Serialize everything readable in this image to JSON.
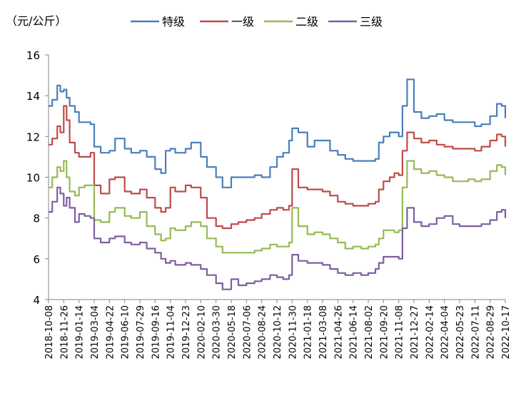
{
  "chart_data": {
    "type": "line",
    "unit_label": "（元/公斤）",
    "ylim": [
      4,
      16
    ],
    "yticks": [
      4,
      6,
      8,
      10,
      12,
      14,
      16
    ],
    "grid": false,
    "legend_position": "top",
    "x_range": [
      "2018-10-08",
      "2022-10-17"
    ],
    "x_tick_labels": [
      "2018-10-08",
      "2018-11-26",
      "2019-01-14",
      "2019-03-04",
      "2019-04-22",
      "2019-06-10",
      "2019-07-29",
      "2019-09-16",
      "2019-11-04",
      "2019-12-23",
      "2020-02-10",
      "2020-03-30",
      "2020-05-18",
      "2020-07-06",
      "2020-08-24",
      "2020-10-12",
      "2020-11-30",
      "2021-01-18",
      "2021-03-08",
      "2021-04-26",
      "2021-06-14",
      "2021-08-02",
      "2021-09-20",
      "2021-11-08",
      "2021-12-27",
      "2022-02-14",
      "2022-04-04",
      "2022-05-23",
      "2022-07-11",
      "2022-08-29",
      "2022-10-17"
    ],
    "series": [
      {
        "name": "特级",
        "color": "#4a7ebb",
        "x": [
          "2018-10-08",
          "2018-10-20",
          "2018-11-05",
          "2018-11-15",
          "2018-11-26",
          "2018-12-05",
          "2018-12-15",
          "2019-01-01",
          "2019-01-14",
          "2019-02-01",
          "2019-02-20",
          "2019-03-04",
          "2019-03-25",
          "2019-04-22",
          "2019-05-10",
          "2019-06-10",
          "2019-07-01",
          "2019-07-29",
          "2019-08-20",
          "2019-09-16",
          "2019-10-05",
          "2019-10-20",
          "2019-11-04",
          "2019-11-20",
          "2019-12-23",
          "2020-01-10",
          "2020-02-10",
          "2020-03-01",
          "2020-03-30",
          "2020-04-20",
          "2020-05-18",
          "2020-06-10",
          "2020-07-06",
          "2020-08-01",
          "2020-08-24",
          "2020-09-20",
          "2020-10-12",
          "2020-11-01",
          "2020-11-20",
          "2020-11-30",
          "2020-12-20",
          "2021-01-18",
          "2021-02-10",
          "2021-03-08",
          "2021-04-01",
          "2021-04-26",
          "2021-05-20",
          "2021-06-14",
          "2021-07-10",
          "2021-08-02",
          "2021-08-25",
          "2021-09-05",
          "2021-09-20",
          "2021-10-10",
          "2021-10-25",
          "2021-11-08",
          "2021-11-20",
          "2021-12-05",
          "2021-12-27",
          "2022-01-20",
          "2022-02-14",
          "2022-03-10",
          "2022-04-04",
          "2022-05-01",
          "2022-05-23",
          "2022-06-20",
          "2022-07-11",
          "2022-08-01",
          "2022-08-29",
          "2022-09-20",
          "2022-10-05",
          "2022-10-17"
        ],
        "values": [
          13.5,
          13.8,
          14.5,
          14.2,
          14.3,
          13.9,
          13.5,
          13.2,
          12.7,
          12.7,
          12.6,
          11.5,
          11.2,
          11.3,
          11.9,
          11.4,
          11.2,
          11.3,
          11.0,
          10.4,
          10.2,
          11.3,
          11.4,
          11.2,
          11.4,
          11.7,
          11.0,
          10.5,
          10.0,
          9.5,
          10.0,
          10.0,
          10.0,
          10.1,
          10.0,
          10.5,
          11.0,
          11.2,
          11.8,
          12.4,
          12.2,
          11.5,
          11.8,
          11.8,
          11.3,
          11.1,
          10.9,
          10.8,
          10.8,
          10.8,
          10.9,
          11.7,
          12.0,
          12.2,
          12.2,
          12.0,
          13.5,
          14.8,
          13.2,
          12.9,
          13.0,
          13.1,
          12.8,
          12.7,
          12.7,
          12.7,
          12.5,
          12.6,
          13.0,
          13.6,
          13.5,
          12.9
        ]
      },
      {
        "name": "一级",
        "color": "#be4b48",
        "x": [
          "2018-10-08",
          "2018-10-20",
          "2018-11-05",
          "2018-11-15",
          "2018-11-26",
          "2018-12-05",
          "2018-12-15",
          "2019-01-01",
          "2019-01-14",
          "2019-02-01",
          "2019-02-20",
          "2019-03-04",
          "2019-03-25",
          "2019-04-22",
          "2019-05-10",
          "2019-06-10",
          "2019-07-01",
          "2019-07-29",
          "2019-08-20",
          "2019-09-16",
          "2019-10-05",
          "2019-10-20",
          "2019-11-04",
          "2019-11-20",
          "2019-12-23",
          "2020-01-10",
          "2020-02-10",
          "2020-03-01",
          "2020-03-30",
          "2020-04-20",
          "2020-05-18",
          "2020-06-10",
          "2020-07-06",
          "2020-08-01",
          "2020-08-24",
          "2020-09-20",
          "2020-10-12",
          "2020-11-01",
          "2020-11-20",
          "2020-11-30",
          "2020-12-20",
          "2021-01-18",
          "2021-02-10",
          "2021-03-08",
          "2021-04-01",
          "2021-04-26",
          "2021-05-20",
          "2021-06-14",
          "2021-07-10",
          "2021-08-02",
          "2021-08-25",
          "2021-09-05",
          "2021-09-20",
          "2021-10-10",
          "2021-10-25",
          "2021-11-08",
          "2021-11-20",
          "2021-12-05",
          "2021-12-27",
          "2022-01-20",
          "2022-02-14",
          "2022-03-10",
          "2022-04-04",
          "2022-05-01",
          "2022-05-23",
          "2022-06-20",
          "2022-07-11",
          "2022-08-01",
          "2022-08-29",
          "2022-09-20",
          "2022-10-05",
          "2022-10-17"
        ],
        "values": [
          11.6,
          11.9,
          12.5,
          12.2,
          13.5,
          12.8,
          11.7,
          11.2,
          11.0,
          11.0,
          11.2,
          9.6,
          9.2,
          9.9,
          10.0,
          9.3,
          9.2,
          9.4,
          9.0,
          8.5,
          8.3,
          8.5,
          9.5,
          9.3,
          9.6,
          9.5,
          9.0,
          8.0,
          7.6,
          7.5,
          7.7,
          7.8,
          7.9,
          8.0,
          8.2,
          8.4,
          8.5,
          8.4,
          8.6,
          10.4,
          9.5,
          9.4,
          9.4,
          9.3,
          9.1,
          8.8,
          8.7,
          8.6,
          8.6,
          8.7,
          8.8,
          9.4,
          9.8,
          10.0,
          10.2,
          10.1,
          11.3,
          12.2,
          11.9,
          11.7,
          11.8,
          11.6,
          11.5,
          11.4,
          11.4,
          11.4,
          11.3,
          11.5,
          11.8,
          12.1,
          12.0,
          11.5
        ]
      },
      {
        "name": "二级",
        "color": "#98b954",
        "x": [
          "2018-10-08",
          "2018-10-20",
          "2018-11-05",
          "2018-11-15",
          "2018-11-26",
          "2018-12-05",
          "2018-12-15",
          "2019-01-01",
          "2019-01-14",
          "2019-02-01",
          "2019-02-20",
          "2019-03-04",
          "2019-03-25",
          "2019-04-22",
          "2019-05-10",
          "2019-06-10",
          "2019-07-01",
          "2019-07-29",
          "2019-08-20",
          "2019-09-16",
          "2019-10-05",
          "2019-10-20",
          "2019-11-04",
          "2019-11-20",
          "2019-12-23",
          "2020-01-10",
          "2020-02-10",
          "2020-03-01",
          "2020-03-30",
          "2020-04-20",
          "2020-05-18",
          "2020-06-10",
          "2020-07-06",
          "2020-08-01",
          "2020-08-24",
          "2020-09-20",
          "2020-10-12",
          "2020-11-01",
          "2020-11-20",
          "2020-11-30",
          "2020-12-20",
          "2021-01-18",
          "2021-02-10",
          "2021-03-08",
          "2021-04-01",
          "2021-04-26",
          "2021-05-20",
          "2021-06-14",
          "2021-07-10",
          "2021-08-02",
          "2021-08-25",
          "2021-09-05",
          "2021-09-20",
          "2021-10-10",
          "2021-10-25",
          "2021-11-08",
          "2021-11-20",
          "2021-12-05",
          "2021-12-27",
          "2022-01-20",
          "2022-02-14",
          "2022-03-10",
          "2022-04-04",
          "2022-05-01",
          "2022-05-23",
          "2022-06-20",
          "2022-07-11",
          "2022-08-01",
          "2022-08-29",
          "2022-09-20",
          "2022-10-05",
          "2022-10-17"
        ],
        "values": [
          9.5,
          10.0,
          10.5,
          10.3,
          10.8,
          10.0,
          9.3,
          9.1,
          9.5,
          9.6,
          9.6,
          7.9,
          7.8,
          8.3,
          8.5,
          8.1,
          8.0,
          8.3,
          7.6,
          7.2,
          6.9,
          7.0,
          7.5,
          7.4,
          7.6,
          7.8,
          7.6,
          7.0,
          6.6,
          6.3,
          6.3,
          6.3,
          6.3,
          6.4,
          6.5,
          6.7,
          6.6,
          6.6,
          6.8,
          8.5,
          7.6,
          7.2,
          7.3,
          7.2,
          7.0,
          6.8,
          6.5,
          6.6,
          6.5,
          6.6,
          6.7,
          7.0,
          7.4,
          7.4,
          7.3,
          7.4,
          9.5,
          10.8,
          10.4,
          10.2,
          10.3,
          10.1,
          10.0,
          9.8,
          9.8,
          9.9,
          9.8,
          9.9,
          10.3,
          10.6,
          10.5,
          10.1
        ]
      },
      {
        "name": "三级",
        "color": "#7d5fa0",
        "x": [
          "2018-10-08",
          "2018-10-20",
          "2018-11-05",
          "2018-11-15",
          "2018-11-26",
          "2018-12-05",
          "2018-12-15",
          "2019-01-01",
          "2019-01-14",
          "2019-02-01",
          "2019-02-20",
          "2019-03-04",
          "2019-03-25",
          "2019-04-22",
          "2019-05-10",
          "2019-06-10",
          "2019-07-01",
          "2019-07-29",
          "2019-08-20",
          "2019-09-16",
          "2019-10-05",
          "2019-10-20",
          "2019-11-04",
          "2019-11-20",
          "2019-12-23",
          "2020-01-10",
          "2020-02-10",
          "2020-03-01",
          "2020-03-30",
          "2020-04-20",
          "2020-05-18",
          "2020-06-10",
          "2020-07-06",
          "2020-08-01",
          "2020-08-24",
          "2020-09-20",
          "2020-10-12",
          "2020-11-01",
          "2020-11-20",
          "2020-11-30",
          "2020-12-20",
          "2021-01-18",
          "2021-02-10",
          "2021-03-08",
          "2021-04-01",
          "2021-04-26",
          "2021-05-20",
          "2021-06-14",
          "2021-07-10",
          "2021-08-02",
          "2021-08-25",
          "2021-09-05",
          "2021-09-20",
          "2021-10-10",
          "2021-10-25",
          "2021-11-08",
          "2021-11-20",
          "2021-12-05",
          "2021-12-27",
          "2022-01-20",
          "2022-02-14",
          "2022-03-10",
          "2022-04-04",
          "2022-05-01",
          "2022-05-23",
          "2022-06-20",
          "2022-07-11",
          "2022-08-01",
          "2022-08-29",
          "2022-09-20",
          "2022-10-05",
          "2022-10-17"
        ],
        "values": [
          8.3,
          8.8,
          9.5,
          9.2,
          8.6,
          9.0,
          8.5,
          7.8,
          8.2,
          8.1,
          8.0,
          7.0,
          6.8,
          7.0,
          7.1,
          6.8,
          6.7,
          6.8,
          6.5,
          6.3,
          6.0,
          5.8,
          5.9,
          5.7,
          5.8,
          5.7,
          5.5,
          5.2,
          4.8,
          4.5,
          5.0,
          4.7,
          4.8,
          4.9,
          5.0,
          5.2,
          5.1,
          5.0,
          5.2,
          6.2,
          5.9,
          5.8,
          5.8,
          5.7,
          5.5,
          5.3,
          5.2,
          5.3,
          5.2,
          5.3,
          5.5,
          5.8,
          6.1,
          6.1,
          6.1,
          6.0,
          7.5,
          8.5,
          7.8,
          7.6,
          7.7,
          8.0,
          8.1,
          7.7,
          7.6,
          7.6,
          7.6,
          7.7,
          7.9,
          8.3,
          8.4,
          8.0
        ]
      }
    ]
  }
}
